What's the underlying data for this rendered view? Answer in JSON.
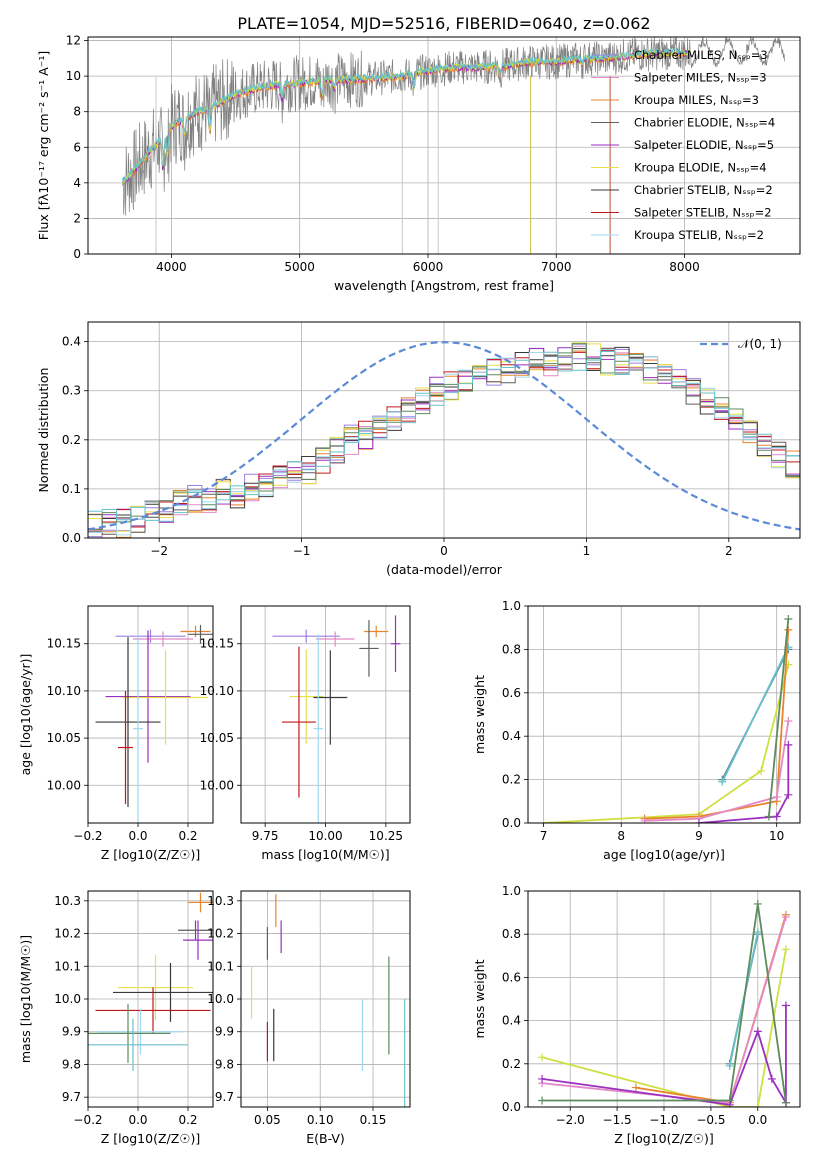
{
  "figure_title": "PLATE=1054, MJD=52516, FIBERID=0640, z=0.062",
  "colors": {
    "data": "#808080",
    "normal_curve": "#5b8bd6",
    "models": [
      "#9b7fe0",
      "#e489c8",
      "#e8842c",
      "#5e5e5e",
      "#9a2fc0",
      "#e8e04a",
      "#3a3a3a",
      "#c0171c",
      "#a0d8f0"
    ],
    "accent_models": [
      "#5e8b5e",
      "#66c2ca",
      "#cfe040",
      "#6a9be8"
    ]
  },
  "chart_data": [
    {
      "id": "spectrum",
      "type": "line",
      "title": "PLATE=1054, MJD=52516, FIBERID=0640, z=0.062",
      "xlabel": "wavelength [Angstrom, rest frame]",
      "ylabel": "Flux [fλ10⁻¹⁷ erg cm⁻² s⁻¹ A⁻¹]",
      "xlim": [
        3350,
        8900
      ],
      "ylim": [
        0,
        12.2
      ],
      "xticks": [
        4000,
        5000,
        6000,
        7000,
        8000
      ],
      "yticks": [
        0,
        2,
        4,
        6,
        8,
        10,
        12
      ],
      "legend_position": "right",
      "legend": [
        "Chabrier MILES, N_SSP=3",
        "Salpeter MILES, N_SSP=3",
        "Kroupa MILES, N_SSP=3",
        "Chabrier ELODIE, N_SSP=4",
        "Salpeter ELODIE, N_SSP=5",
        "Kroupa ELODIE, N_SSP=4",
        "Chabrier STELIB, N_SSP=2",
        "Salpeter STELIB, N_SSP=2",
        "Kroupa STELIB, N_SSP=2"
      ],
      "model_continuum": {
        "x": [
          3620,
          3700,
          3800,
          3900,
          4000,
          4100,
          4200,
          4300,
          4400,
          4500,
          4600,
          4800,
          5000,
          5200,
          5400,
          5600,
          5800,
          6000,
          6200,
          6400,
          6600,
          6800,
          7000,
          7200,
          7400,
          7600,
          7800,
          8000,
          8200
        ],
        "y": [
          4.0,
          4.6,
          5.5,
          6.3,
          7.2,
          7.6,
          8.0,
          8.2,
          8.6,
          9.0,
          9.2,
          9.5,
          9.6,
          9.8,
          9.8,
          9.9,
          10.0,
          10.3,
          10.5,
          10.5,
          10.6,
          10.8,
          10.8,
          11.0,
          11.0,
          11.2,
          11.3,
          11.3,
          11.4
        ]
      }
    },
    {
      "id": "residuals",
      "type": "histogram",
      "xlabel": "(data-model)/error",
      "ylabel": "Normed distribution",
      "xlim": [
        -2.5,
        2.5
      ],
      "ylim": [
        0,
        0.44
      ],
      "xticks": [
        -2,
        -1,
        0,
        1,
        2
      ],
      "yticks": [
        0.0,
        0.1,
        0.2,
        0.3,
        0.4
      ],
      "legend": [
        "𝒩(0, 1)"
      ],
      "legend_position": "top-right",
      "bin_edges_start": -2.5,
      "bin_width": 0.1,
      "histogram_envelope": [
        0.03,
        0.03,
        0.03,
        0.04,
        0.05,
        0.06,
        0.07,
        0.08,
        0.08,
        0.09,
        0.09,
        0.1,
        0.11,
        0.12,
        0.13,
        0.14,
        0.16,
        0.18,
        0.2,
        0.21,
        0.22,
        0.24,
        0.26,
        0.28,
        0.3,
        0.31,
        0.32,
        0.33,
        0.34,
        0.34,
        0.35,
        0.36,
        0.36,
        0.37,
        0.37,
        0.37,
        0.36,
        0.36,
        0.35,
        0.34,
        0.33,
        0.32,
        0.3,
        0.28,
        0.26,
        0.24,
        0.22,
        0.19,
        0.17,
        0.15,
        0.13,
        0.12,
        0.11,
        0.1,
        0.09,
        0.08,
        0.08,
        0.07,
        0.07,
        0.06
      ]
    },
    {
      "id": "age_vs_Z",
      "type": "scatter",
      "xlabel": "Z [log10(Z/Z☉)]",
      "ylabel": "age  [log10(age/yr)]",
      "xlim": [
        -0.2,
        0.3
      ],
      "ylim": [
        9.96,
        10.19
      ],
      "xticks": [
        -0.2,
        0.0,
        0.2
      ],
      "yticks": [
        10.0,
        10.05,
        10.1,
        10.15
      ],
      "points": [
        {
          "x": 0.05,
          "y": 10.158,
          "xerr": 0.14,
          "yerr": 0.007
        },
        {
          "x": 0.1,
          "y": 10.155,
          "xerr": 0.12,
          "yerr": 0.008
        },
        {
          "x": 0.23,
          "y": 10.163,
          "xerr": 0.06,
          "yerr": 0.006
        },
        {
          "x": 0.25,
          "y": 10.16,
          "xerr": 0.05,
          "yerr": 0.01
        },
        {
          "x": 0.04,
          "y": 10.094,
          "xerr": 0.17,
          "yerr": 0.07
        },
        {
          "x": 0.11,
          "y": 10.093,
          "xerr": 0.17,
          "yerr": 0.05
        },
        {
          "x": -0.04,
          "y": 10.067,
          "xerr": 0.13,
          "yerr": 0.09
        },
        {
          "x": -0.05,
          "y": 10.04,
          "xerr": 0.03,
          "yerr": 0.06
        },
        {
          "x": 0.0,
          "y": 10.06,
          "xerr": 0.02,
          "yerr": 0.1
        }
      ]
    },
    {
      "id": "age_vs_mass",
      "type": "scatter",
      "xlabel": "mass [log10(M/M☉)]",
      "ylabel": "",
      "xlim": [
        9.65,
        10.35
      ],
      "ylim": [
        9.96,
        10.19
      ],
      "xticks": [
        9.75,
        10.0,
        10.25
      ],
      "yticks": [
        10.0,
        10.05,
        10.1,
        10.15
      ],
      "points": [
        {
          "x": 9.92,
          "y": 10.158,
          "xerr": 0.14,
          "yerr": 0.007
        },
        {
          "x": 10.04,
          "y": 10.155,
          "xerr": 0.08,
          "yerr": 0.008
        },
        {
          "x": 10.21,
          "y": 10.163,
          "xerr": 0.05,
          "yerr": 0.006
        },
        {
          "x": 10.18,
          "y": 10.145,
          "xerr": 0.04,
          "yerr": 0.03
        },
        {
          "x": 10.29,
          "y": 10.15,
          "xerr": 0.02,
          "yerr": 0.03
        },
        {
          "x": 9.92,
          "y": 10.094,
          "xerr": 0.07,
          "yerr": 0.05
        },
        {
          "x": 10.02,
          "y": 10.093,
          "xerr": 0.07,
          "yerr": 0.05
        },
        {
          "x": 9.89,
          "y": 10.067,
          "xerr": 0.07,
          "yerr": 0.08
        },
        {
          "x": 9.97,
          "y": 10.06,
          "xerr": 0.02,
          "yerr": 0.1
        }
      ]
    },
    {
      "id": "mass_weight_vs_age",
      "type": "line",
      "xlabel": "age  [log10(age/yr)]",
      "ylabel": "mass weight",
      "xlim": [
        6.8,
        10.3
      ],
      "ylim": [
        0,
        1
      ],
      "xticks": [
        7,
        8,
        9,
        10
      ],
      "yticks": [
        0.0,
        0.2,
        0.4,
        0.6,
        0.8,
        1.0
      ],
      "series": [
        {
          "x": [
            9.3,
            10.15
          ],
          "y": [
            0.2,
            0.8
          ]
        },
        {
          "x": [
            9.3,
            10.15
          ],
          "y": [
            0.19,
            0.81
          ]
        },
        {
          "x": [
            7.0,
            9.0,
            9.8,
            10.15
          ],
          "y": [
            0.0,
            0.04,
            0.24,
            0.73
          ]
        },
        {
          "x": [
            8.3,
            9.0,
            10.0,
            10.15
          ],
          "y": [
            0.02,
            0.03,
            0.1,
            0.89
          ]
        },
        {
          "x": [
            8.3,
            9.0,
            10.0,
            10.15
          ],
          "y": [
            0.01,
            0.02,
            0.12,
            0.47
          ]
        },
        {
          "x": [
            9.0,
            10.0,
            10.15,
            10.15
          ],
          "y": [
            0.0,
            0.03,
            0.13,
            0.36
          ]
        },
        {
          "x": [
            9.9,
            10.15
          ],
          "y": [
            0.03,
            0.94
          ]
        }
      ]
    },
    {
      "id": "mass_vs_Z",
      "type": "scatter",
      "xlabel": "Z [log10(Z/Z☉)]",
      "ylabel": "mass [log10(M/M☉)]",
      "xlim": [
        -0.2,
        0.3
      ],
      "ylim": [
        9.67,
        10.33
      ],
      "xticks": [
        -0.2,
        0.0,
        0.2
      ],
      "yticks": [
        9.7,
        9.8,
        9.9,
        10.0,
        10.1,
        10.2,
        10.3
      ],
      "points": [
        {
          "x": 0.25,
          "y": 10.295,
          "xerr": 0.05,
          "yerr": 0.03
        },
        {
          "x": 0.23,
          "y": 10.21,
          "xerr": 0.07,
          "yerr": 0.03
        },
        {
          "x": 0.24,
          "y": 10.18,
          "xerr": 0.06,
          "yerr": 0.06
        },
        {
          "x": 0.07,
          "y": 10.035,
          "xerr": 0.15,
          "yerr": 0.1
        },
        {
          "x": 0.13,
          "y": 10.02,
          "xerr": 0.23,
          "yerr": 0.09
        },
        {
          "x": 0.06,
          "y": 9.965,
          "xerr": 0.23,
          "yerr": 0.07
        },
        {
          "x": 0.01,
          "y": 9.9,
          "xerr": 0.17,
          "yerr": 0.07
        },
        {
          "x": -0.04,
          "y": 9.895,
          "xerr": 0.17,
          "yerr": 0.09
        },
        {
          "x": -0.02,
          "y": 9.86,
          "xerr": 0.22,
          "yerr": 0.08
        }
      ]
    },
    {
      "id": "mass_vs_EBV",
      "type": "scatter",
      "xlabel": "E(B-V)",
      "ylabel": "",
      "xlim": [
        0.025,
        0.185
      ],
      "ylim": [
        9.67,
        10.33
      ],
      "xticks": [
        0.05,
        0.1,
        0.15
      ],
      "yticks": [
        9.7,
        9.8,
        9.9,
        10.0,
        10.1,
        10.2,
        10.3
      ],
      "points": [
        {
          "x": 0.058,
          "y": 10.27,
          "yerr": 0.05
        },
        {
          "x": 0.05,
          "y": 10.17,
          "yerr": 0.05
        },
        {
          "x": 0.063,
          "y": 10.19,
          "yerr": 0.05
        },
        {
          "x": 0.035,
          "y": 10.02,
          "yerr": 0.08
        },
        {
          "x": 0.056,
          "y": 9.89,
          "yerr": 0.08
        },
        {
          "x": 0.05,
          "y": 9.87,
          "yerr": 0.06
        },
        {
          "x": 0.14,
          "y": 9.89,
          "yerr": 0.11
        },
        {
          "x": 0.165,
          "y": 9.98,
          "yerr": 0.15
        },
        {
          "x": 0.18,
          "y": 9.83,
          "yerr": 0.17
        }
      ]
    },
    {
      "id": "mass_weight_vs_Z",
      "type": "line",
      "xlabel": "Z [log10(Z/Z☉)]",
      "ylabel": "mass weight",
      "xlim": [
        -2.45,
        0.45
      ],
      "ylim": [
        0,
        1
      ],
      "xticks": [
        -2.0,
        -1.5,
        -1.0,
        -0.5,
        0.0
      ],
      "yticks": [
        0.0,
        0.2,
        0.4,
        0.6,
        0.8,
        1.0
      ],
      "series": [
        {
          "x": [
            -0.3,
            0.0
          ],
          "y": [
            0.2,
            0.8
          ]
        },
        {
          "x": [
            -0.3,
            0.0
          ],
          "y": [
            0.19,
            0.81
          ]
        },
        {
          "x": [
            -2.3,
            -0.3,
            0.0,
            0.3
          ],
          "y": [
            0.23,
            0.0,
            0.0,
            0.73
          ]
        },
        {
          "x": [
            -1.3,
            -0.3,
            0.3
          ],
          "y": [
            0.09,
            0.02,
            0.89
          ]
        },
        {
          "x": [
            -2.3,
            -0.3,
            0.3
          ],
          "y": [
            0.11,
            0.02,
            0.88
          ]
        },
        {
          "x": [
            -2.3,
            -0.3,
            0.0,
            0.15,
            0.3,
            0.3
          ],
          "y": [
            0.13,
            0.01,
            0.35,
            0.13,
            0.02,
            0.47
          ]
        },
        {
          "x": [
            -2.3,
            -0.3,
            0.0,
            0.3
          ],
          "y": [
            0.03,
            0.03,
            0.94,
            0.02
          ]
        }
      ]
    }
  ]
}
